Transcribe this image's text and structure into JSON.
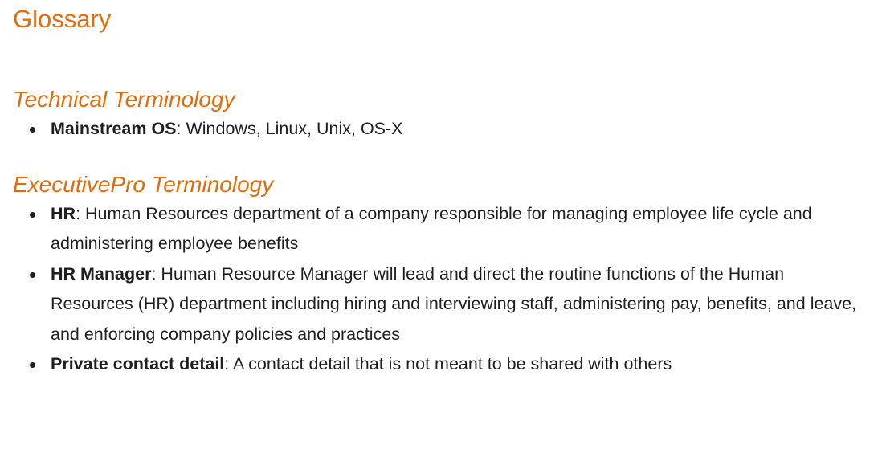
{
  "glossary": {
    "title": "Glossary",
    "sections": [
      {
        "heading": "Technical Terminology",
        "items": [
          {
            "term": "Mainstream OS",
            "definition": "Windows, Linux, Unix, OS-X"
          }
        ]
      },
      {
        "heading": "ExecutivePro Terminology",
        "items": [
          {
            "term": "HR",
            "definition": "Human Resources department of a company responsible for managing employee life cycle and administering employee benefits"
          },
          {
            "term": "HR Manager",
            "definition": "Human Resource Manager will lead and direct the routine functions of the Human Resources (HR) department including hiring and interviewing staff, administering pay, benefits, and leave, and enforcing company policies and practices"
          },
          {
            "term": "Private contact detail",
            "definition": "A contact detail that is not meant to be shared with others"
          }
        ]
      }
    ],
    "separator": ": "
  },
  "colors": {
    "heading": "#e36c0a",
    "text": "#1f1f1f"
  }
}
